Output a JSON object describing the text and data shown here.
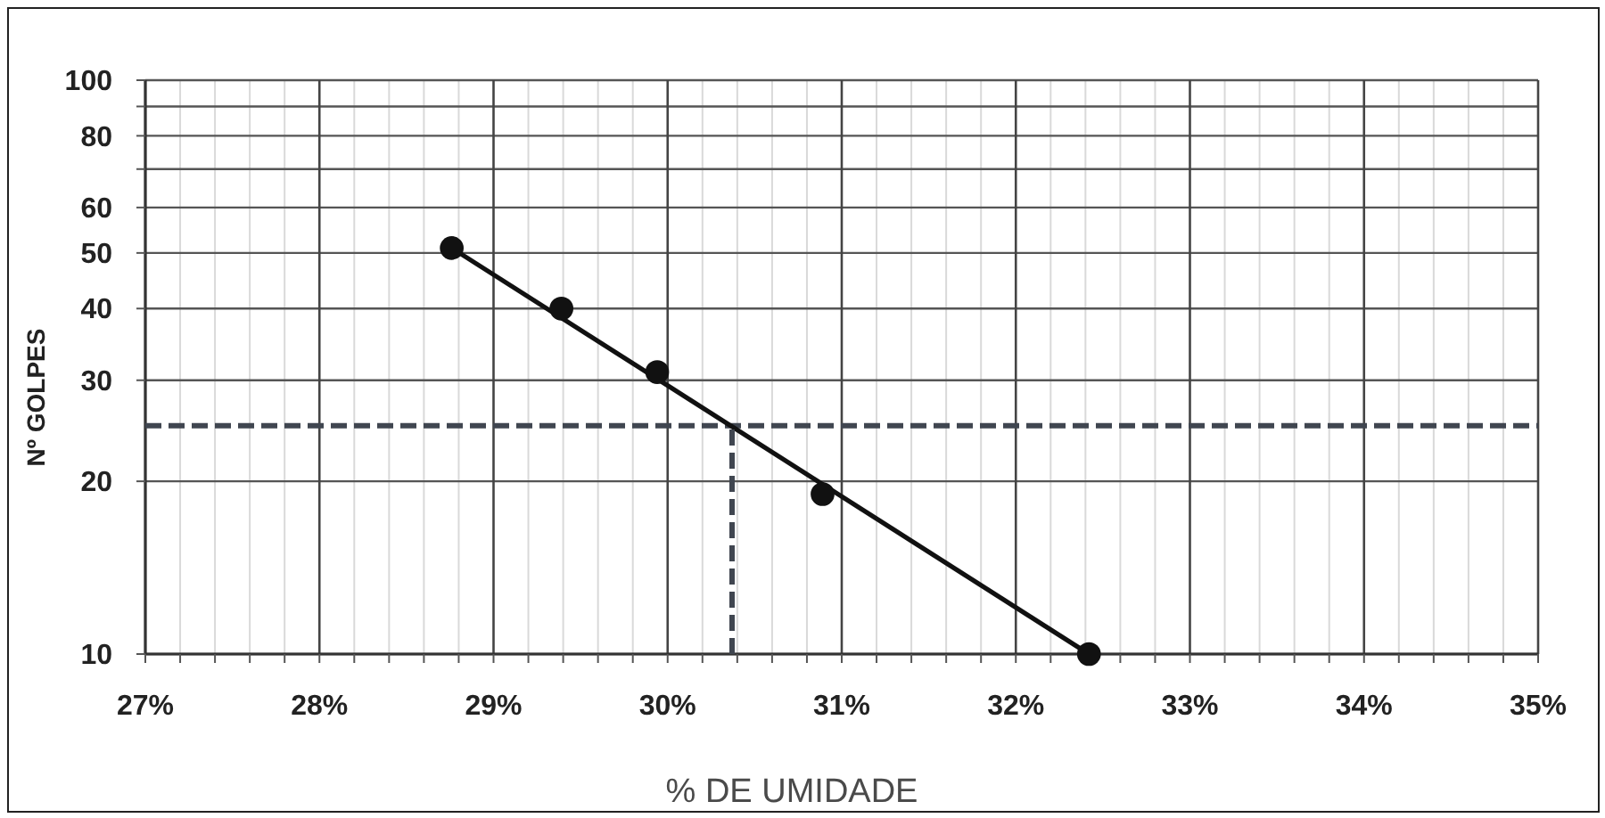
{
  "chart_data": {
    "type": "scatter",
    "xlabel": "% DE UMIDADE",
    "ylabel": "Nº GOLPES",
    "log": "y",
    "grid": true,
    "marker": "circle",
    "xlim": [
      27,
      35
    ],
    "ylim": [
      10,
      100
    ],
    "xticks": [
      {
        "value": 27,
        "label": "27%"
      },
      {
        "value": 27.2,
        "label": null
      },
      {
        "value": 27.4,
        "label": null
      },
      {
        "value": 27.6,
        "label": null
      },
      {
        "value": 27.8,
        "label": null
      },
      {
        "value": 28,
        "label": "28%"
      },
      {
        "value": 28.2,
        "label": null
      },
      {
        "value": 28.4,
        "label": null
      },
      {
        "value": 28.6,
        "label": null
      },
      {
        "value": 28.8,
        "label": null
      },
      {
        "value": 29,
        "label": "29%"
      },
      {
        "value": 29.2,
        "label": null
      },
      {
        "value": 29.4,
        "label": null
      },
      {
        "value": 29.6,
        "label": null
      },
      {
        "value": 29.8,
        "label": null
      },
      {
        "value": 30,
        "label": "30%"
      },
      {
        "value": 30.2,
        "label": null
      },
      {
        "value": 30.4,
        "label": null
      },
      {
        "value": 30.6,
        "label": null
      },
      {
        "value": 30.8,
        "label": null
      },
      {
        "value": 31,
        "label": "31%"
      },
      {
        "value": 31.2,
        "label": null
      },
      {
        "value": 31.4,
        "label": null
      },
      {
        "value": 31.6,
        "label": null
      },
      {
        "value": 31.8,
        "label": null
      },
      {
        "value": 32,
        "label": "32%"
      },
      {
        "value": 32.2,
        "label": null
      },
      {
        "value": 32.4,
        "label": null
      },
      {
        "value": 32.6,
        "label": null
      },
      {
        "value": 32.8,
        "label": null
      },
      {
        "value": 33,
        "label": "33%"
      },
      {
        "value": 33.2,
        "label": null
      },
      {
        "value": 33.4,
        "label": null
      },
      {
        "value": 33.6,
        "label": null
      },
      {
        "value": 33.8,
        "label": null
      },
      {
        "value": 34,
        "label": "34%"
      },
      {
        "value": 34.2,
        "label": null
      },
      {
        "value": 34.4,
        "label": null
      },
      {
        "value": 34.6,
        "label": null
      },
      {
        "value": 34.8,
        "label": null
      },
      {
        "value": 35,
        "label": "35%"
      }
    ],
    "yticks": [
      10,
      20,
      30,
      40,
      50,
      60,
      {
        "value": 70,
        "label": null
      },
      80,
      {
        "value": 90,
        "label": null
      },
      100
    ],
    "series": [
      {
        "color": "#111111",
        "x": [
          28.76,
          29.39,
          29.94,
          30.89,
          32.42
        ],
        "values": [
          51,
          40,
          31,
          19,
          10
        ]
      },
      {
        "type": "line",
        "color": "#111111",
        "x": [
          28.76,
          32.42
        ],
        "values": [
          51,
          10
        ],
        "marker": "none"
      },
      {
        "type": "line",
        "color": "#404650",
        "x": [
          30.37,
          30.37
        ],
        "values": [
          10,
          25
        ],
        "line_style": "dashed",
        "marker": "none"
      }
    ],
    "ref_lines": [
      {
        "axis": "y",
        "value": 25,
        "color": "#404650",
        "line_style": "dashed"
      }
    ]
  }
}
